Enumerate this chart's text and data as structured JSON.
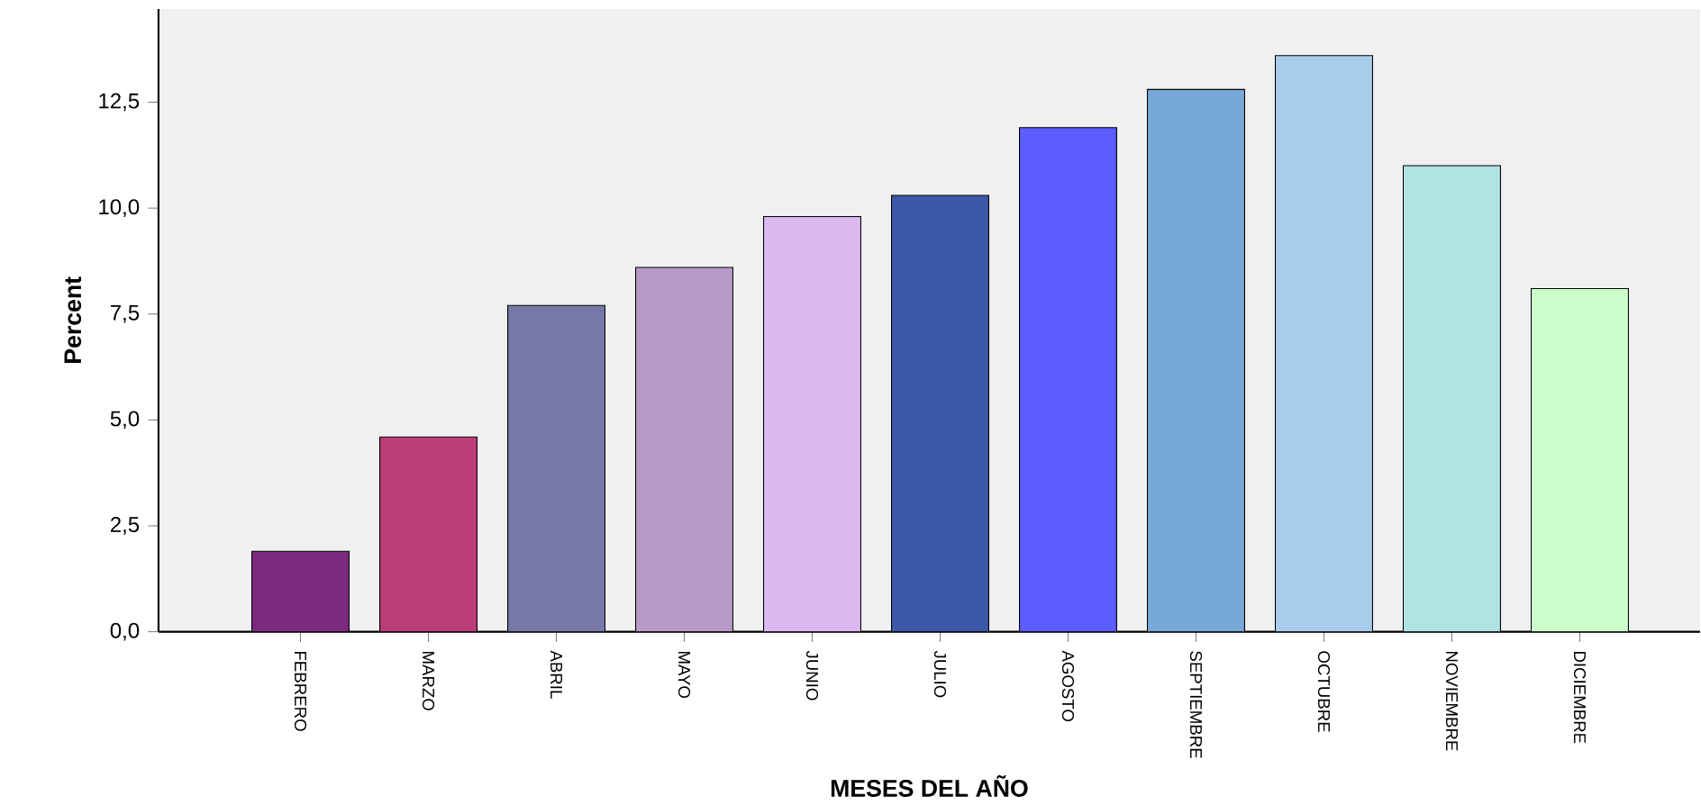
{
  "chart_data": {
    "type": "bar",
    "xlabel": "MESES DEL AÑO",
    "ylabel": "Percent",
    "categories": [
      "FEBRERO",
      "MARZO",
      "ABRIL",
      "MAYO",
      "JUNIO",
      "JULIO",
      "AGOSTO",
      "SEPTIEMBRE",
      "OCTUBRE",
      "NOVIEMBRE",
      "DICIEMBRE"
    ],
    "values": [
      1.9,
      4.6,
      7.7,
      8.6,
      9.8,
      10.3,
      11.9,
      12.8,
      13.6,
      11.0,
      8.1
    ],
    "colors": [
      "#7b2a7f",
      "#bb3d78",
      "#7878a8",
      "#b89ac8",
      "#dcb8f0",
      "#3c58a8",
      "#5c5cff",
      "#78a8d8",
      "#a8cceb",
      "#b0e4e4",
      "#ccffcc"
    ],
    "ylim": [
      0,
      14.7
    ],
    "yticks": [
      {
        "value": 0,
        "label": "0,0"
      },
      {
        "value": 2.5,
        "label": "2,5"
      },
      {
        "value": 5,
        "label": "5,0"
      },
      {
        "value": 7.5,
        "label": "7,5"
      },
      {
        "value": 10,
        "label": "10,0"
      },
      {
        "value": 12.5,
        "label": "12,5"
      }
    ],
    "grid": false
  }
}
